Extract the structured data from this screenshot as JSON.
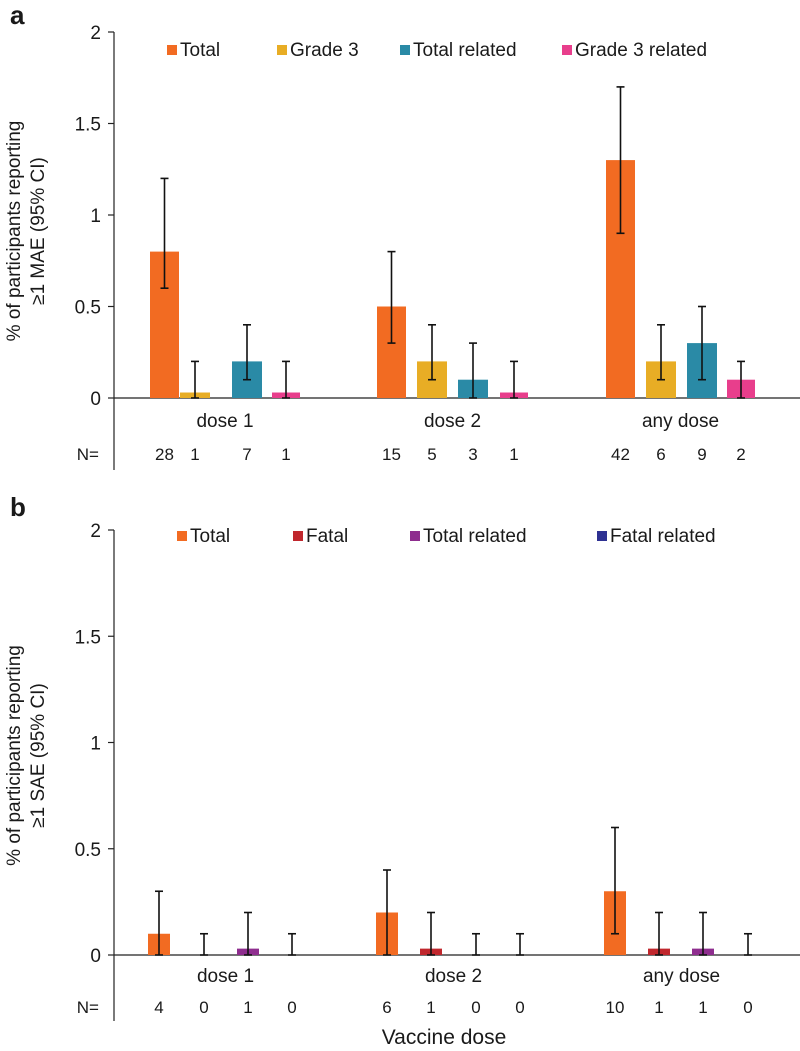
{
  "xlabel": "Vaccine dose",
  "n_label": "N=",
  "chart_data": [
    {
      "panel": "a",
      "type": "bar",
      "categories": [
        "dose 1",
        "dose 2",
        "any dose"
      ],
      "ylabel_lines": [
        "% of participants reporting",
        "≥1 MAE (95% CI)"
      ],
      "ylim": [
        0,
        2
      ],
      "yticks": [
        "0",
        "0.5",
        "1",
        "1.5",
        "2"
      ],
      "legend_position": "top",
      "series": [
        {
          "name": "Total",
          "color": "#f26b22",
          "values": [
            0.8,
            0.5,
            1.3
          ],
          "ci_low": [
            0.6,
            0.3,
            0.9
          ],
          "ci_high": [
            1.2,
            0.8,
            1.7
          ],
          "n": [
            "28",
            "15",
            "42"
          ]
        },
        {
          "name": "Grade 3",
          "color": "#e8ad25",
          "values": [
            0.03,
            0.2,
            0.2
          ],
          "ci_low": [
            0,
            0.1,
            0.1
          ],
          "ci_high": [
            0.2,
            0.4,
            0.4
          ],
          "n": [
            "1",
            "5",
            "6"
          ]
        },
        {
          "name": "Total related",
          "color": "#2a8aa6",
          "values": [
            0.2,
            0.1,
            0.3
          ],
          "ci_low": [
            0.1,
            0,
            0.1
          ],
          "ci_high": [
            0.4,
            0.3,
            0.5
          ],
          "n": [
            "7",
            "3",
            "9"
          ]
        },
        {
          "name": "Grade 3 related",
          "color": "#e83e8c",
          "values": [
            0.03,
            0.03,
            0.1
          ],
          "ci_low": [
            0,
            0,
            0
          ],
          "ci_high": [
            0.2,
            0.2,
            0.2
          ],
          "n": [
            "1",
            "1",
            "2"
          ]
        }
      ]
    },
    {
      "panel": "b",
      "type": "bar",
      "categories": [
        "dose 1",
        "dose 2",
        "any dose"
      ],
      "ylabel_lines": [
        "% of participants reporting",
        "≥1 SAE (95% CI)"
      ],
      "ylim": [
        0,
        2
      ],
      "yticks": [
        "0",
        "0.5",
        "1",
        "1.5",
        "2"
      ],
      "legend_position": "top",
      "series": [
        {
          "name": "Total",
          "color": "#f26b22",
          "values": [
            0.1,
            0.2,
            0.3
          ],
          "ci_low": [
            0,
            0,
            0.1
          ],
          "ci_high": [
            0.3,
            0.4,
            0.6
          ],
          "n": [
            "4",
            "6",
            "10"
          ]
        },
        {
          "name": "Fatal",
          "color": "#c0272d",
          "values": [
            0,
            0.03,
            0.03
          ],
          "ci_low": [
            0,
            0,
            0
          ],
          "ci_high": [
            0.1,
            0.2,
            0.2
          ],
          "n": [
            "0",
            "1",
            "1"
          ]
        },
        {
          "name": "Total related",
          "color": "#8e2d8e",
          "values": [
            0.03,
            0,
            0.03
          ],
          "ci_low": [
            0,
            0,
            0
          ],
          "ci_high": [
            0.2,
            0.1,
            0.2
          ],
          "n": [
            "1",
            "0",
            "1"
          ]
        },
        {
          "name": "Fatal related",
          "color": "#2e3192",
          "values": [
            0,
            0,
            0
          ],
          "ci_low": [
            0,
            0,
            0
          ],
          "ci_high": [
            0.1,
            0.1,
            0.1
          ],
          "n": [
            "0",
            "0",
            "0"
          ]
        }
      ]
    }
  ]
}
